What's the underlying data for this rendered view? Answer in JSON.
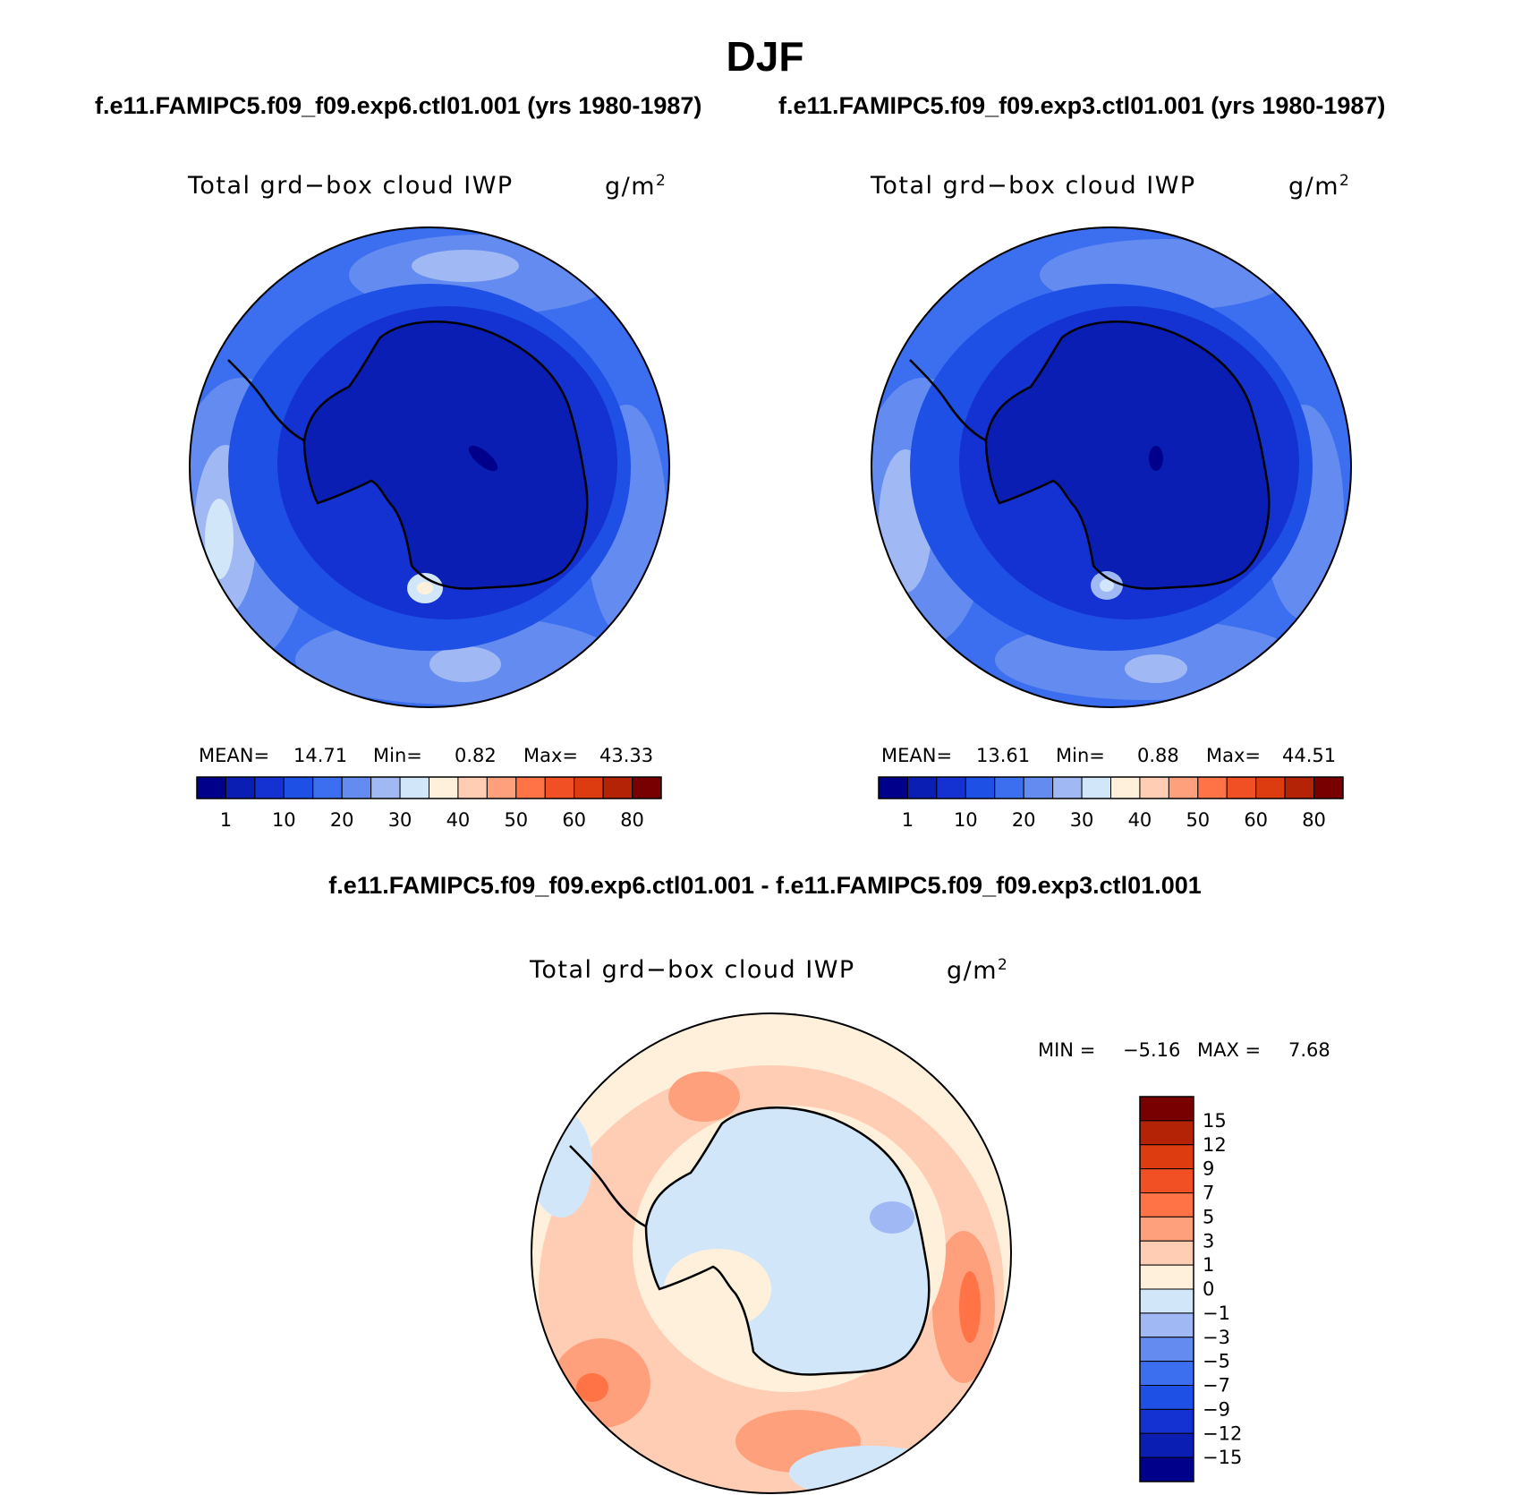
{
  "figure": {
    "season": "DJF",
    "case_a_title": "f.e11.FAMIPC5.f09_f09.exp6.ctl01.001 (yrs 1980-1987)",
    "case_b_title": "f.e11.FAMIPC5.f09_f09.exp3.ctl01.001 (yrs 1980-1987)",
    "diff_title": "f.e11.FAMIPC5.f09_f09.exp6.ctl01.001 - f.e11.FAMIPC5.f09_f09.exp3.ctl01.001"
  },
  "panels": {
    "a": {
      "variable": "Total grd−box cloud IWP",
      "units": "g/m",
      "units_sup": "2",
      "mean_label": "MEAN=",
      "mean": "14.71",
      "min_label": "Min=",
      "min": "0.82",
      "max_label": "Max=",
      "max": "43.33"
    },
    "b": {
      "variable": "Total grd−box cloud IWP",
      "units": "g/m",
      "units_sup": "2",
      "mean_label": "MEAN=",
      "mean": "13.61",
      "min_label": "Min=",
      "min": "0.88",
      "max_label": "Max=",
      "max": "44.51"
    },
    "diff": {
      "variable": "Total grd−box cloud IWP",
      "units": "g/m",
      "units_sup": "2",
      "min_label": "MIN =",
      "min": "−5.16",
      "max_label": "MAX =",
      "max": "7.68"
    }
  },
  "colorbar_abs": {
    "colors": [
      "#00008b",
      "#0a1eb4",
      "#1432d2",
      "#1e50e6",
      "#3c6ef0",
      "#648cf0",
      "#a0b9f5",
      "#d2e6fa",
      "#fff0dc",
      "#ffcdb4",
      "#ffa07d",
      "#ff7346",
      "#f05023",
      "#dc3c0f",
      "#b42305",
      "#780000"
    ],
    "ticks": [
      "1",
      "10",
      "20",
      "30",
      "40",
      "50",
      "60",
      "80"
    ]
  },
  "colorbar_diff": {
    "colors_top_to_bottom": [
      "#780000",
      "#b42305",
      "#dc3c0f",
      "#f05023",
      "#ff7346",
      "#ffa07d",
      "#ffcdb4",
      "#fff0dc",
      "#d2e6fa",
      "#a0b9f5",
      "#648cf0",
      "#3c6ef0",
      "#1e50e6",
      "#1432d2",
      "#0a1eb4",
      "#00008b"
    ],
    "ticks_top_to_bottom": [
      "15",
      "12",
      "9",
      "7",
      "5",
      "3",
      "1",
      "0",
      "−1",
      "−3",
      "−5",
      "−7",
      "−9",
      "−12",
      "−15"
    ]
  }
}
